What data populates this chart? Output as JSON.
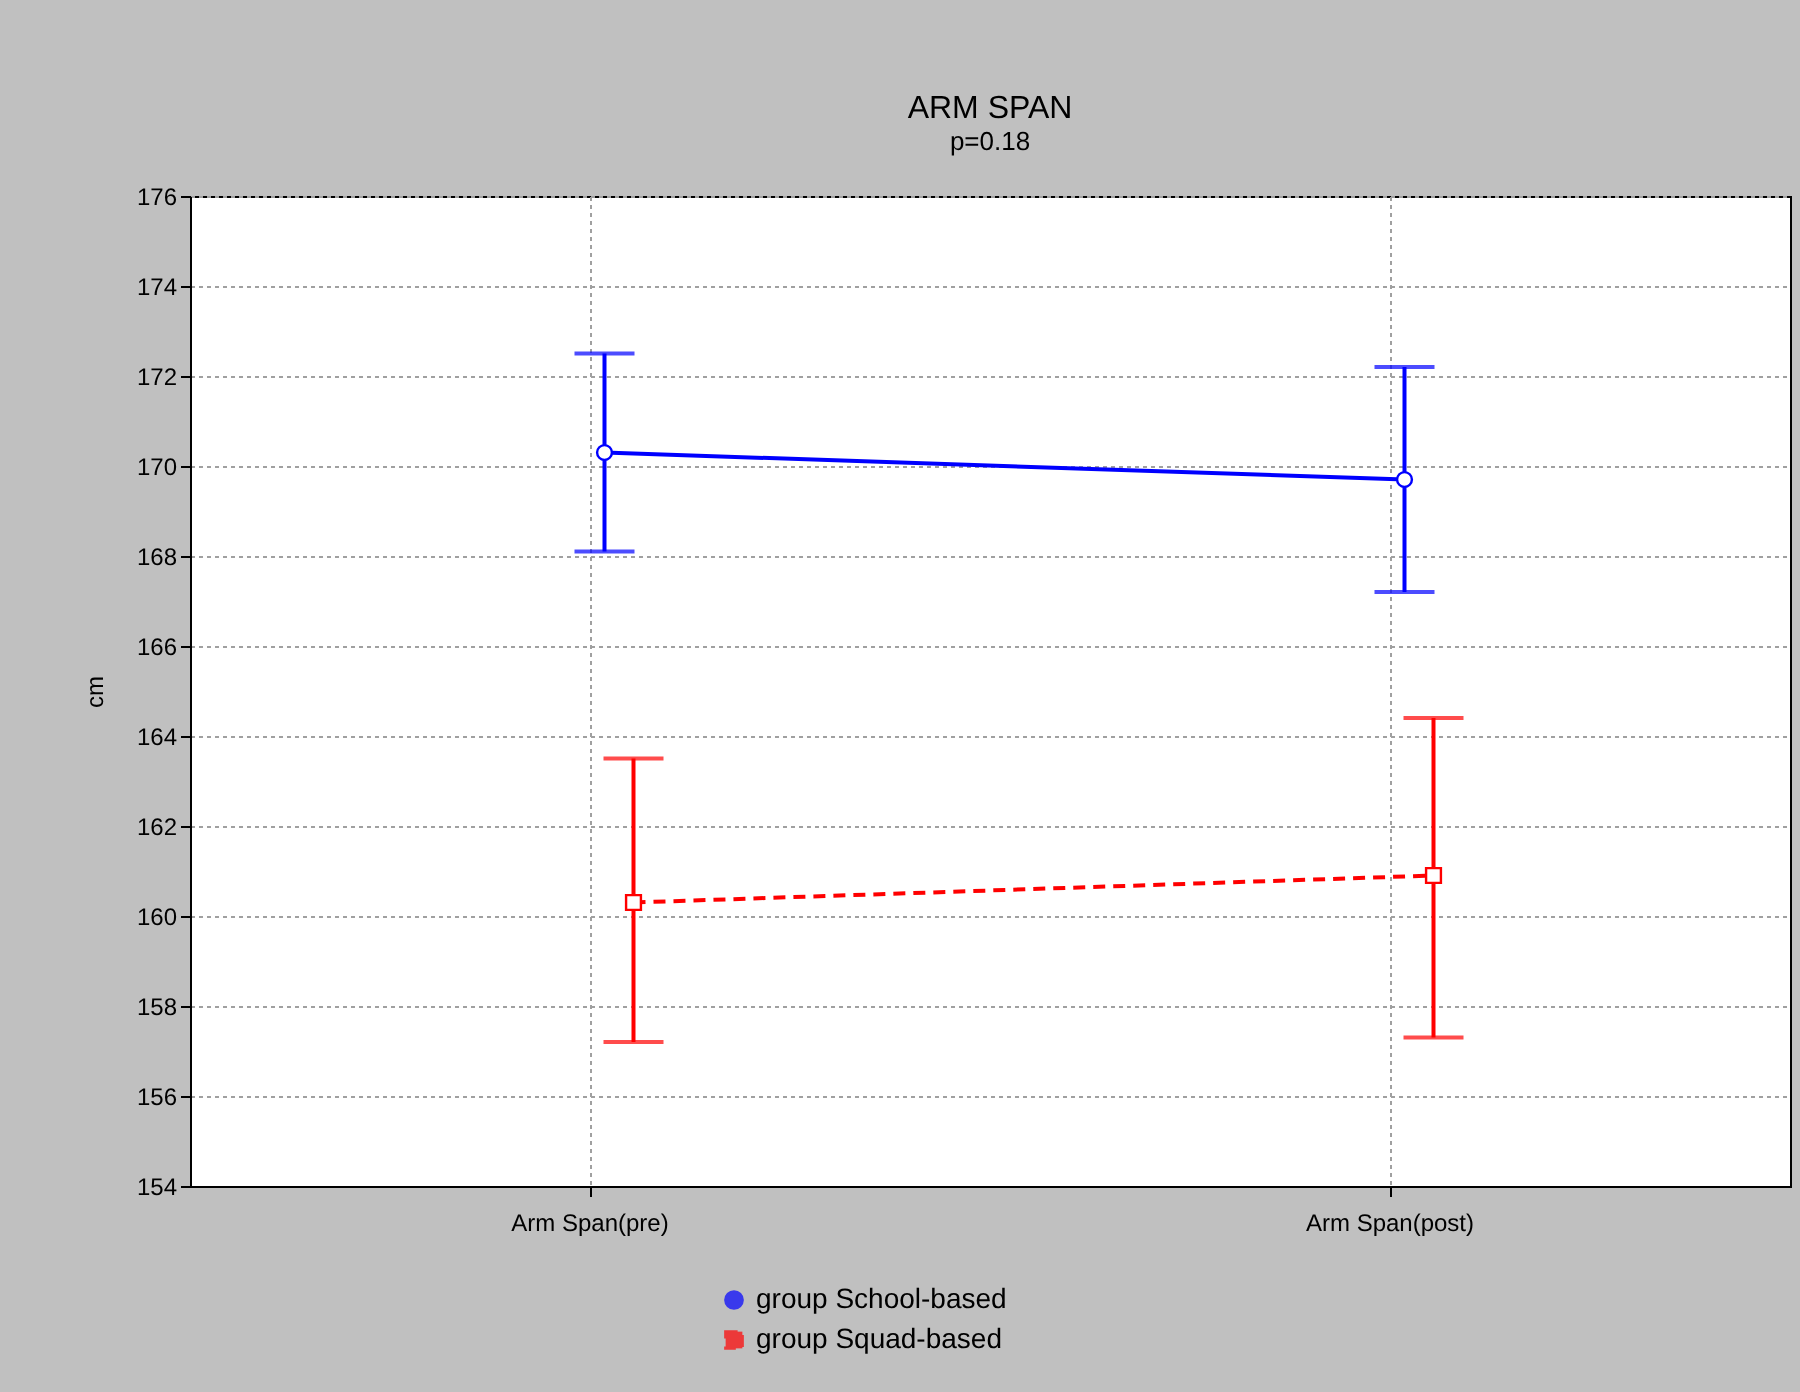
{
  "chart_data": {
    "type": "line",
    "title": "ARM SPAN",
    "subtitle": "p=0.18",
    "ylabel": "cm",
    "categories": [
      "Arm Span(pre)",
      "Arm Span(post)"
    ],
    "series": [
      {
        "name": "group School-based",
        "color": "#0000ff",
        "marker": "circle",
        "line_style": "solid",
        "values": [
          170.3,
          169.7
        ],
        "errors": [
          [
            168.1,
            172.5
          ],
          [
            167.2,
            172.2
          ]
        ]
      },
      {
        "name": "group Squad-based",
        "color": "#ff0000",
        "marker": "square",
        "line_style": "dashed",
        "values": [
          160.3,
          160.9
        ],
        "errors": [
          [
            157.2,
            163.5
          ],
          [
            157.3,
            164.4
          ]
        ]
      }
    ],
    "ylim": [
      154,
      176
    ],
    "yticks": [
      154,
      156,
      158,
      160,
      162,
      164,
      166,
      168,
      170,
      172,
      174,
      176
    ],
    "grid": true,
    "legend": "bottom"
  }
}
